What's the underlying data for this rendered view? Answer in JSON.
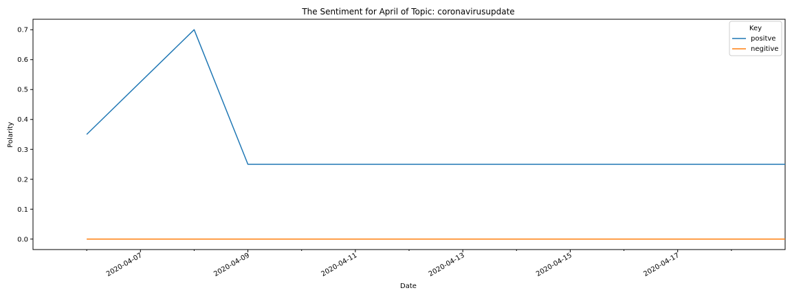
{
  "chart_data": {
    "type": "line",
    "title": "The Sentiment for April of Topic: coronavirusupdate",
    "xlabel": "Date",
    "ylabel": "Polarity",
    "x_ticks": [
      "2020-04-07",
      "2020-04-09",
      "2020-04-11",
      "2020-04-13",
      "2020-04-15",
      "2020-04-17"
    ],
    "y_ticks": [
      "0.0",
      "0.1",
      "0.2",
      "0.3",
      "0.4",
      "0.5",
      "0.6",
      "0.7"
    ],
    "ylim": [
      -0.035,
      0.735
    ],
    "xlim": [
      "2020-04-05",
      "2020-04-19"
    ],
    "grid": false,
    "legend": {
      "title": "Key",
      "position": "top-right"
    },
    "series": [
      {
        "name": "positve",
        "color": "#1f77b4",
        "x": [
          "2020-04-06",
          "2020-04-08",
          "2020-04-09",
          "2020-04-19"
        ],
        "values": [
          0.35,
          0.7,
          0.25,
          0.25
        ]
      },
      {
        "name": "negitive",
        "color": "#ff7f0e",
        "x": [
          "2020-04-06",
          "2020-04-19"
        ],
        "values": [
          0.0,
          0.0
        ]
      }
    ]
  }
}
